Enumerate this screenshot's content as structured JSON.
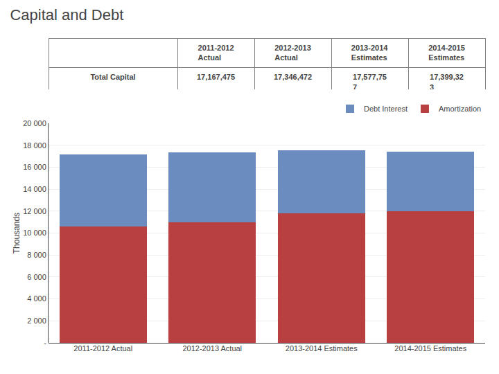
{
  "chart_data": {
    "type": "bar",
    "stacked": true,
    "title": "Capital and Debt",
    "table": {
      "columns": [
        "2011-2012\nActual",
        "2012-2013\nActual",
        "2013-2014\nEstimates",
        "2014-2015\nEstimates"
      ],
      "rows": [
        {
          "label": "Total Capital",
          "cells": [
            "17,167,475",
            "17,346,472",
            "17,577,75\n7",
            "17,399,32\n3"
          ]
        }
      ]
    },
    "categories": [
      "2011-2012 Actual",
      "2012-2013 Actual",
      "2013-2014 Estimates",
      "2014-2015 Estimates"
    ],
    "series": [
      {
        "name": "Amortization",
        "color": "#B94040",
        "values": [
          10600,
          11000,
          11800,
          12000
        ]
      },
      {
        "name": "Debt Interest",
        "color": "#6B8CBE",
        "values": [
          6567,
          6346,
          5778,
          5399
        ]
      }
    ],
    "ylabel": "Thousands",
    "ylim": [
      0,
      20000
    ],
    "yticks": [
      {
        "value": 0,
        "label": "-"
      },
      {
        "value": 2000,
        "label": "2 000"
      },
      {
        "value": 4000,
        "label": "4 000"
      },
      {
        "value": 6000,
        "label": "6 000"
      },
      {
        "value": 8000,
        "label": "8 000"
      },
      {
        "value": 10000,
        "label": "10 000"
      },
      {
        "value": 12000,
        "label": "12 000"
      },
      {
        "value": 14000,
        "label": "14 000"
      },
      {
        "value": 16000,
        "label": "16 000"
      },
      {
        "value": 18000,
        "label": "18 000"
      },
      {
        "value": 20000,
        "label": "20 000"
      }
    ],
    "grid": true,
    "legend": "upper right"
  }
}
